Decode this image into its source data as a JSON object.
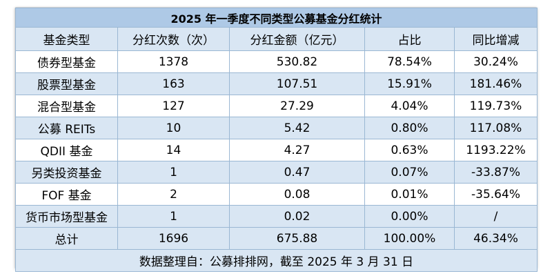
{
  "title": "2025 年一季度不同类型公募基金分红统计",
  "headers": [
    "基金类型",
    "分红次数（次）",
    "分红金额（亿元）",
    "占比",
    "同比增减"
  ],
  "rows": [
    [
      "债券型基金",
      "1378",
      "530.82",
      "78.54%",
      "30.24%"
    ],
    [
      "股票型基金",
      "163",
      "107.51",
      "15.91%",
      "181.46%"
    ],
    [
      "混合型基金",
      "127",
      "27.29",
      "4.04%",
      "119.73%"
    ],
    [
      "公募 REITs",
      "10",
      "5.42",
      "0.80%",
      "117.08%"
    ],
    [
      "QDII 基金",
      "14",
      "4.27",
      "0.63%",
      "1193.22%"
    ],
    [
      "另类投资基金",
      "1",
      "0.47",
      "0.07%",
      "-33.87%"
    ],
    [
      "FOF 基金",
      "2",
      "0.08",
      "0.01%",
      "-35.64%"
    ],
    [
      "货币市场型基金",
      "1",
      "0.02",
      "0.00%",
      "/"
    ]
  ],
  "total": [
    "总计",
    "1696",
    "675.88",
    "100.00%",
    "46.34%"
  ],
  "source": "数据整理自：公募排排网，截至 2025 年 3 月 31 日",
  "colors": {
    "title_bg": "#aec9e6",
    "band_bg": "#d9e6f3",
    "border": "#9ab7d3"
  }
}
